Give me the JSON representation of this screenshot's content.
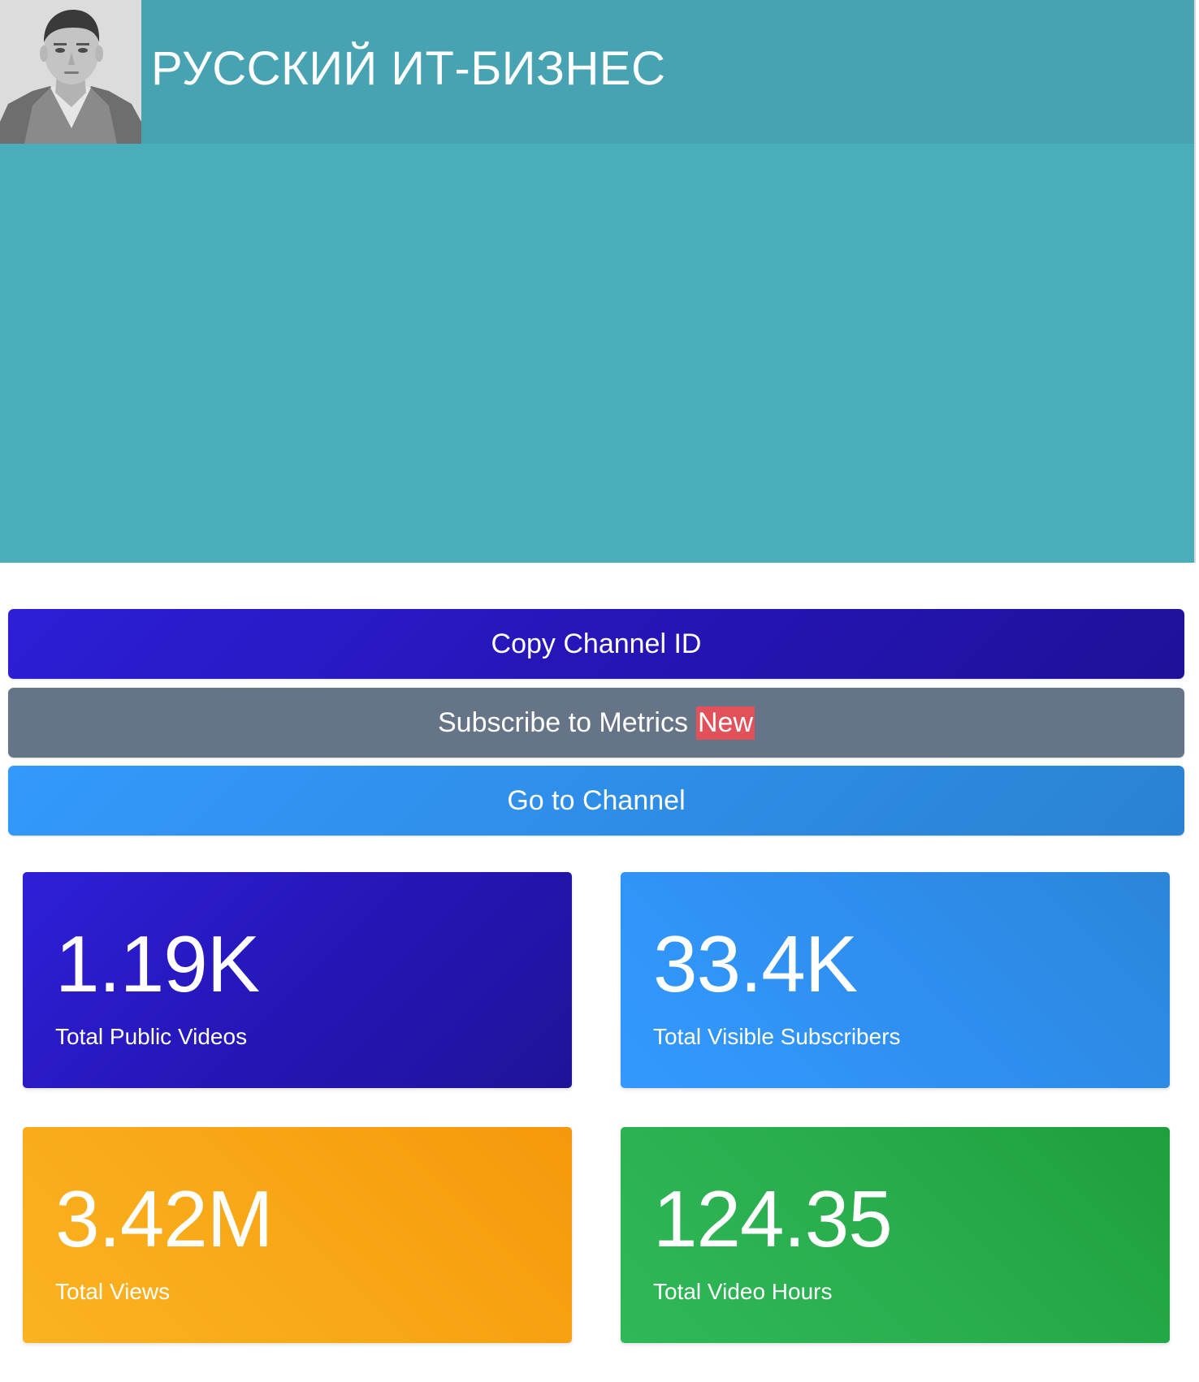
{
  "channel": {
    "title": "РУССКИЙ ИТ-БИЗНЕС",
    "avatar_icon": "channel-avatar-photo"
  },
  "actions": {
    "copy_channel_id": "Copy Channel ID",
    "subscribe_metrics": "Subscribe to Metrics",
    "subscribe_badge": "New",
    "go_to_channel": "Go to Channel"
  },
  "stats": {
    "public_videos": {
      "value": "1.19K",
      "label": "Total Public Videos"
    },
    "visible_subscribers": {
      "value": "33.4K",
      "label": "Total Visible Subscribers"
    },
    "views": {
      "value": "3.42M",
      "label": "Total Views"
    },
    "video_hours": {
      "value": "124.35",
      "label": "Total Video Hours"
    }
  },
  "colors": {
    "banner": "#49adbb",
    "banner_head": "#47a3b1",
    "primary": "#2c1fd6",
    "secondary": "#667488",
    "info": "#3399fb",
    "warning": "#f8a716",
    "success": "#29ad4d",
    "badge_danger": "#e2515a"
  }
}
